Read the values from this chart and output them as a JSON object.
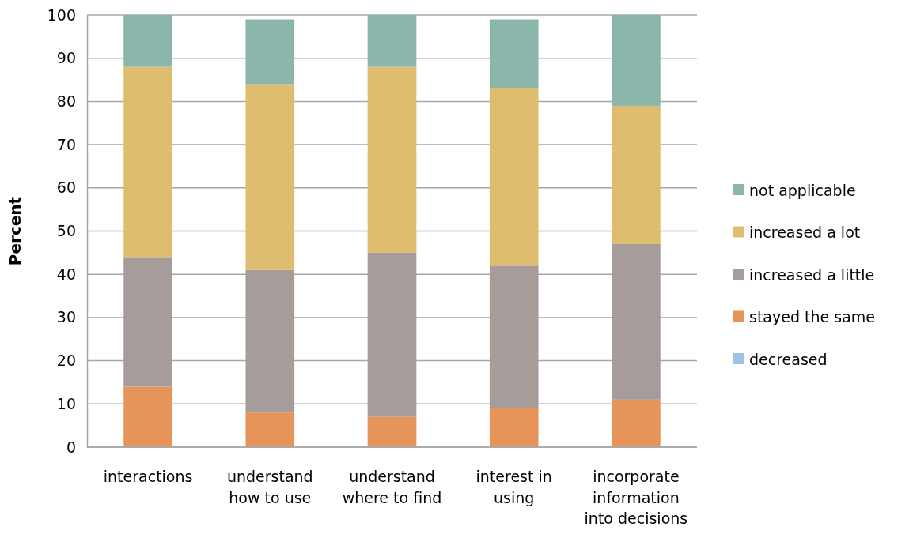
{
  "chart_data": {
    "type": "bar",
    "stacked": true,
    "ylabel": "Percent",
    "categories": [
      "interactions",
      "understand how to use",
      "understand where to find",
      "interest in using",
      "incorporate information into decisions"
    ],
    "series": [
      {
        "name": "decreased",
        "color": "#9dc3e6",
        "values": [
          0,
          0,
          0,
          0,
          0
        ]
      },
      {
        "name": "stayed the same",
        "color": "#e6945a",
        "values": [
          14,
          8,
          7,
          9,
          11
        ]
      },
      {
        "name": "increased a little",
        "color": "#a69d9b",
        "values": [
          30,
          33,
          38,
          33,
          36
        ]
      },
      {
        "name": "increased a lot",
        "color": "#dfbd6e",
        "values": [
          44,
          43,
          43,
          41,
          32
        ]
      },
      {
        "name": "not applicable",
        "color": "#8cb5ab",
        "values": [
          12,
          15,
          12,
          16,
          21
        ]
      }
    ],
    "ylim": [
      0,
      100
    ],
    "yticks": [
      0,
      10,
      20,
      30,
      40,
      50,
      60,
      70,
      80,
      90,
      100
    ],
    "grid": "y",
    "legend": "right"
  }
}
